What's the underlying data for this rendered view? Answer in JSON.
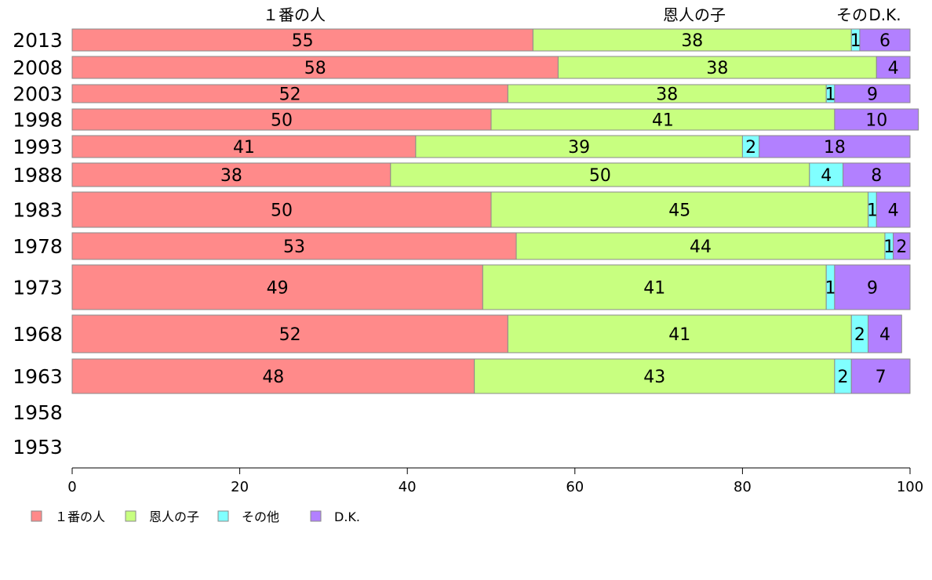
{
  "chart_data": {
    "type": "bar",
    "orientation": "horizontal",
    "stacked": true,
    "categories": [
      "2013",
      "2008",
      "2003",
      "1998",
      "1993",
      "1988",
      "1983",
      "1978",
      "1973",
      "1968",
      "1963",
      "1958",
      "1953"
    ],
    "series": [
      {
        "name": "１番の人",
        "color": "#ff8a8a",
        "values": [
          55,
          58,
          52,
          50,
          41,
          38,
          50,
          53,
          49,
          52,
          48,
          null,
          null
        ]
      },
      {
        "name": "恩人の子",
        "color": "#c8ff80",
        "values": [
          38,
          38,
          38,
          41,
          39,
          50,
          45,
          44,
          41,
          41,
          43,
          null,
          null
        ]
      },
      {
        "name": "その他",
        "color": "#80ffff",
        "values": [
          1,
          0,
          1,
          0,
          2,
          4,
          1,
          1,
          1,
          2,
          2,
          null,
          null
        ]
      },
      {
        "name": "D.K.",
        "color": "#b280ff",
        "values": [
          6,
          4,
          9,
          10,
          18,
          8,
          4,
          2,
          9,
          4,
          7,
          null,
          null
        ]
      }
    ],
    "top_labels": [
      "１番の人",
      "恩人の子",
      "その",
      "D.K."
    ],
    "x_ticks": [
      "0",
      "20",
      "40",
      "60",
      "80",
      "100"
    ],
    "xlim": [
      0,
      100
    ],
    "legend_position": "bottom-left",
    "grid": false
  }
}
